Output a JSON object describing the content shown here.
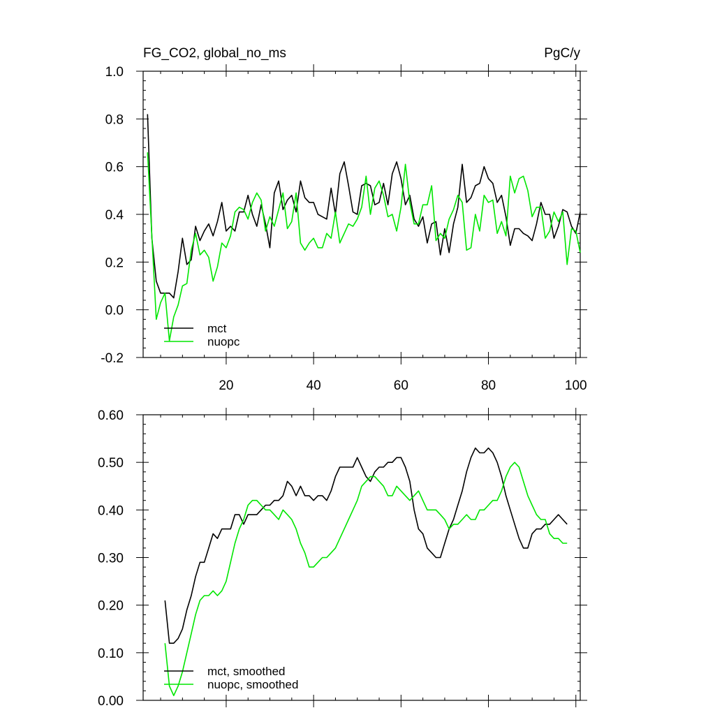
{
  "colors": {
    "mct": "#000000",
    "nuopc": "#00e600",
    "axes": "#000000",
    "background": "#ffffff"
  },
  "chart_data": [
    {
      "type": "line",
      "title": "FG_CO2, global_no_ms",
      "units": "PgC/y",
      "xlim": [
        1,
        101
      ],
      "ylim": [
        -0.2,
        1.0
      ],
      "x_ticks": [
        20,
        40,
        60,
        80,
        100
      ],
      "x_tick_labels": [
        "20",
        "40",
        "60",
        "80",
        "100"
      ],
      "y_ticks": [
        -0.2,
        0.0,
        0.2,
        0.4,
        0.6,
        0.8,
        1.0
      ],
      "y_tick_labels": [
        "-0.2",
        "0.0",
        "0.2",
        "0.4",
        "0.6",
        "0.8",
        "1.0"
      ],
      "legend_position": "bottom-left",
      "x": [
        2,
        3,
        4,
        5,
        6,
        7,
        8,
        9,
        10,
        11,
        12,
        13,
        14,
        15,
        16,
        17,
        18,
        19,
        20,
        21,
        22,
        23,
        24,
        25,
        26,
        27,
        28,
        29,
        30,
        31,
        32,
        33,
        34,
        35,
        36,
        37,
        38,
        39,
        40,
        41,
        42,
        43,
        44,
        45,
        46,
        47,
        48,
        49,
        50,
        51,
        52,
        53,
        54,
        55,
        56,
        57,
        58,
        59,
        60,
        61,
        62,
        63,
        64,
        65,
        66,
        67,
        68,
        69,
        70,
        71,
        72,
        73,
        74,
        75,
        76,
        77,
        78,
        79,
        80,
        81,
        82,
        83,
        84,
        85,
        86,
        87,
        88,
        89,
        90,
        91,
        92,
        93,
        94,
        95,
        96,
        97,
        98,
        99,
        100,
        101
      ],
      "series": [
        {
          "name": "mct",
          "values": [
            0.82,
            0.3,
            0.12,
            0.07,
            0.07,
            0.07,
            0.05,
            0.16,
            0.3,
            0.19,
            0.21,
            0.35,
            0.29,
            0.33,
            0.36,
            0.31,
            0.37,
            0.45,
            0.33,
            0.35,
            0.33,
            0.41,
            0.41,
            0.48,
            0.4,
            0.35,
            0.44,
            0.36,
            0.26,
            0.49,
            0.54,
            0.42,
            0.46,
            0.48,
            0.41,
            0.54,
            0.47,
            0.45,
            0.45,
            0.4,
            0.39,
            0.38,
            0.51,
            0.4,
            0.57,
            0.62,
            0.52,
            0.41,
            0.4,
            0.52,
            0.53,
            0.52,
            0.44,
            0.45,
            0.53,
            0.44,
            0.57,
            0.62,
            0.55,
            0.44,
            0.48,
            0.38,
            0.35,
            0.39,
            0.28,
            0.36,
            0.37,
            0.23,
            0.34,
            0.24,
            0.36,
            0.43,
            0.61,
            0.45,
            0.47,
            0.52,
            0.53,
            0.6,
            0.55,
            0.53,
            0.45,
            0.48,
            0.39,
            0.27,
            0.34,
            0.34,
            0.32,
            0.31,
            0.29,
            0.36,
            0.45,
            0.4,
            0.4,
            0.3,
            0.35,
            0.42,
            0.41,
            0.35,
            0.32,
            0.41
          ]
        },
        {
          "name": "nuopc",
          "values": [
            0.66,
            0.31,
            -0.04,
            0.03,
            0.07,
            -0.13,
            -0.03,
            0.02,
            0.1,
            0.11,
            0.25,
            0.32,
            0.23,
            0.25,
            0.22,
            0.12,
            0.18,
            0.28,
            0.26,
            0.31,
            0.41,
            0.43,
            0.42,
            0.38,
            0.45,
            0.49,
            0.46,
            0.33,
            0.39,
            0.35,
            0.42,
            0.49,
            0.34,
            0.37,
            0.49,
            0.28,
            0.25,
            0.28,
            0.3,
            0.26,
            0.26,
            0.32,
            0.3,
            0.41,
            0.28,
            0.32,
            0.36,
            0.35,
            0.38,
            0.43,
            0.56,
            0.4,
            0.51,
            0.54,
            0.48,
            0.39,
            0.4,
            0.33,
            0.43,
            0.61,
            0.45,
            0.36,
            0.36,
            0.44,
            0.44,
            0.52,
            0.29,
            0.32,
            0.3,
            0.38,
            0.42,
            0.48,
            0.45,
            0.25,
            0.26,
            0.4,
            0.33,
            0.48,
            0.45,
            0.46,
            0.32,
            0.37,
            0.31,
            0.56,
            0.49,
            0.55,
            0.56,
            0.5,
            0.39,
            0.43,
            0.43,
            0.3,
            0.33,
            0.41,
            0.37,
            0.41,
            0.19,
            0.34,
            0.33,
            0.24
          ]
        }
      ]
    },
    {
      "type": "line",
      "title": "",
      "xlim": [
        1,
        101
      ],
      "ylim": [
        0.0,
        0.6
      ],
      "x_ticks": [
        20,
        40,
        60,
        80,
        100
      ],
      "x_tick_labels": [],
      "y_ticks": [
        0.0,
        0.1,
        0.2,
        0.3,
        0.4,
        0.5,
        0.6
      ],
      "y_tick_labels": [
        "0.00",
        "0.10",
        "0.20",
        "0.30",
        "0.40",
        "0.50",
        "0.60"
      ],
      "legend_position": "bottom-left",
      "x": [
        6,
        7,
        8,
        9,
        10,
        11,
        12,
        13,
        14,
        15,
        16,
        17,
        18,
        19,
        20,
        21,
        22,
        23,
        24,
        25,
        26,
        27,
        28,
        29,
        30,
        31,
        32,
        33,
        34,
        35,
        36,
        37,
        38,
        39,
        40,
        41,
        42,
        43,
        44,
        45,
        46,
        47,
        48,
        49,
        50,
        51,
        52,
        53,
        54,
        55,
        56,
        57,
        58,
        59,
        60,
        61,
        62,
        63,
        64,
        65,
        66,
        67,
        68,
        69,
        70,
        71,
        72,
        73,
        74,
        75,
        76,
        77,
        78,
        79,
        80,
        81,
        82,
        83,
        84,
        85,
        86,
        87,
        88,
        89,
        90,
        91,
        92,
        93,
        94,
        95,
        96,
        97,
        98
      ],
      "series": [
        {
          "name": "mct, smoothed",
          "values": [
            0.21,
            0.12,
            0.12,
            0.13,
            0.15,
            0.19,
            0.22,
            0.26,
            0.29,
            0.29,
            0.32,
            0.35,
            0.34,
            0.36,
            0.36,
            0.36,
            0.39,
            0.39,
            0.37,
            0.39,
            0.39,
            0.39,
            0.4,
            0.41,
            0.41,
            0.42,
            0.42,
            0.43,
            0.46,
            0.45,
            0.43,
            0.45,
            0.43,
            0.43,
            0.42,
            0.43,
            0.43,
            0.42,
            0.44,
            0.47,
            0.49,
            0.49,
            0.49,
            0.49,
            0.51,
            0.49,
            0.47,
            0.46,
            0.48,
            0.49,
            0.49,
            0.5,
            0.5,
            0.51,
            0.51,
            0.49,
            0.46,
            0.4,
            0.36,
            0.35,
            0.32,
            0.31,
            0.3,
            0.3,
            0.33,
            0.36,
            0.38,
            0.41,
            0.44,
            0.48,
            0.51,
            0.53,
            0.52,
            0.52,
            0.53,
            0.52,
            0.5,
            0.47,
            0.43,
            0.4,
            0.37,
            0.34,
            0.32,
            0.32,
            0.35,
            0.36,
            0.36,
            0.37,
            0.37,
            0.38,
            0.39,
            0.38,
            0.37
          ]
        },
        {
          "name": "nuopc, smoothed",
          "values": [
            0.12,
            0.03,
            0.01,
            0.03,
            0.06,
            0.1,
            0.14,
            0.18,
            0.21,
            0.22,
            0.22,
            0.23,
            0.22,
            0.23,
            0.25,
            0.29,
            0.33,
            0.36,
            0.38,
            0.41,
            0.42,
            0.42,
            0.41,
            0.4,
            0.4,
            0.39,
            0.38,
            0.4,
            0.39,
            0.38,
            0.36,
            0.33,
            0.31,
            0.28,
            0.28,
            0.29,
            0.3,
            0.3,
            0.31,
            0.32,
            0.34,
            0.36,
            0.38,
            0.4,
            0.42,
            0.45,
            0.46,
            0.47,
            0.47,
            0.46,
            0.45,
            0.43,
            0.43,
            0.45,
            0.44,
            0.43,
            0.42,
            0.43,
            0.44,
            0.42,
            0.4,
            0.4,
            0.4,
            0.39,
            0.38,
            0.36,
            0.37,
            0.37,
            0.38,
            0.39,
            0.38,
            0.38,
            0.4,
            0.4,
            0.41,
            0.42,
            0.42,
            0.44,
            0.47,
            0.49,
            0.5,
            0.49,
            0.46,
            0.43,
            0.41,
            0.39,
            0.38,
            0.38,
            0.35,
            0.34,
            0.34,
            0.33,
            0.33
          ]
        }
      ]
    }
  ]
}
